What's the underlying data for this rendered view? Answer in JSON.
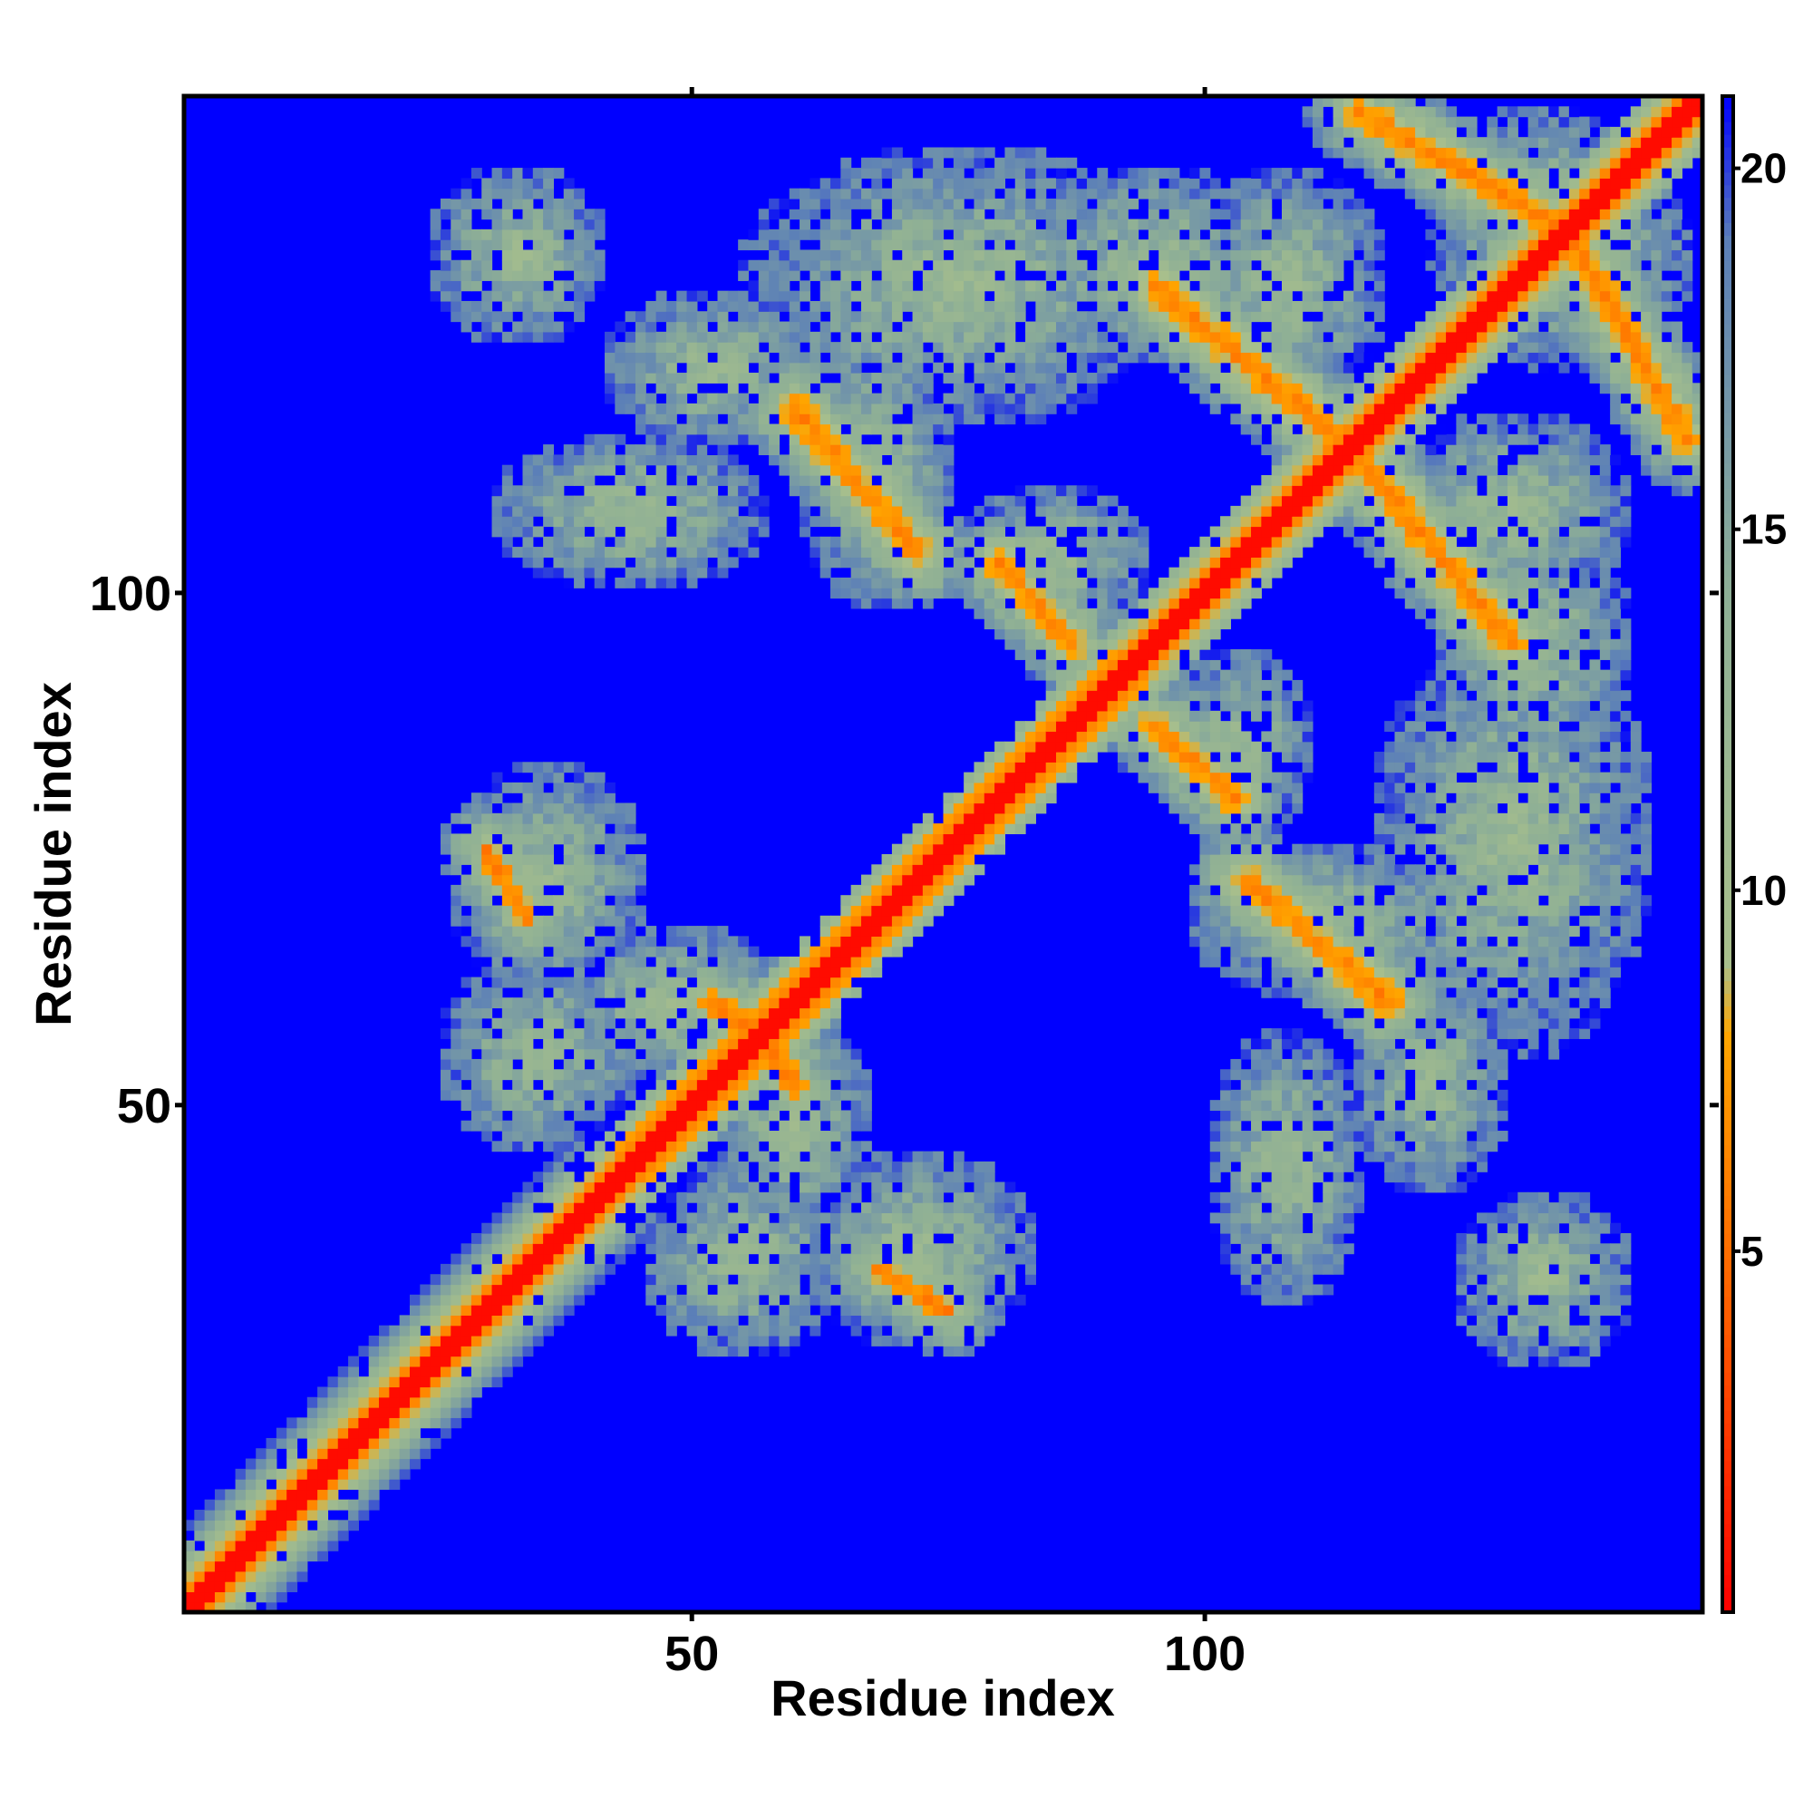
{
  "chart_data": {
    "type": "heatmap",
    "title": "",
    "xlabel": "Residue index",
    "ylabel": "Residue index",
    "n_residues": 148,
    "xlim": [
      1,
      148
    ],
    "ylim": [
      1,
      148
    ],
    "x_ticks": [
      50,
      100
    ],
    "y_ticks": [
      50,
      100
    ],
    "colorbar": {
      "position": "right",
      "ticks": [
        5,
        10,
        15,
        20
      ],
      "range": [
        0,
        21
      ],
      "stops": [
        {
          "value": 0,
          "color": "#ff0000"
        },
        {
          "value": 4,
          "color": "#ff5a00"
        },
        {
          "value": 8,
          "color": "#ffa500"
        },
        {
          "value": 9,
          "color": "#a8bf8c"
        },
        {
          "value": 14,
          "color": "#8fb095"
        },
        {
          "value": 19,
          "color": "#5b7fb8"
        },
        {
          "value": 21,
          "color": "#0000ff"
        }
      ]
    },
    "background_color": "#0000ff",
    "contact_regions": [
      {
        "x": 33,
        "y": 133,
        "rx": 9,
        "ry": 9
      },
      {
        "x": 52,
        "y": 122,
        "rx": 11,
        "ry": 8
      },
      {
        "x": 44,
        "y": 108,
        "rx": 14,
        "ry": 8
      },
      {
        "x": 76,
        "y": 130,
        "rx": 22,
        "ry": 14
      },
      {
        "x": 68,
        "y": 112,
        "rx": 8,
        "ry": 14
      },
      {
        "x": 85,
        "y": 103,
        "rx": 10,
        "ry": 8
      },
      {
        "x": 95,
        "y": 132,
        "rx": 12,
        "ry": 10
      },
      {
        "x": 108,
        "y": 130,
        "rx": 10,
        "ry": 12
      },
      {
        "x": 133,
        "y": 136,
        "rx": 12,
        "ry": 12
      },
      {
        "x": 132,
        "y": 107,
        "rx": 12,
        "ry": 12
      },
      {
        "x": 142,
        "y": 100,
        "rx": 8,
        "ry": 10
      },
      {
        "x": 36,
        "y": 72,
        "rx": 10,
        "ry": 12
      },
      {
        "x": 48,
        "y": 60,
        "rx": 12,
        "ry": 8
      },
      {
        "x": 35,
        "y": 55,
        "rx": 10,
        "ry": 10
      },
      {
        "x": 58,
        "y": 50,
        "rx": 12,
        "ry": 8
      },
      {
        "x": 52,
        "y": 38,
        "rx": 10,
        "ry": 8
      },
      {
        "x": 72,
        "y": 31,
        "rx": 14,
        "ry": 8
      },
      {
        "x": 103,
        "y": 85,
        "rx": 8,
        "ry": 10
      },
      {
        "x": 107,
        "y": 67,
        "rx": 8,
        "ry": 8
      },
      {
        "x": 115,
        "y": 50,
        "rx": 14,
        "ry": 12
      },
      {
        "x": 112,
        "y": 31,
        "rx": 14,
        "ry": 8
      },
      {
        "x": 137,
        "y": 27,
        "rx": 12,
        "ry": 10
      },
      {
        "x": 133,
        "y": 80,
        "rx": 14,
        "ry": 12
      },
      {
        "x": 140,
        "y": 64,
        "rx": 8,
        "ry": 8
      }
    ],
    "contact_bands": [
      {
        "x1": 60,
        "y1": 118,
        "x2": 72,
        "y2": 104,
        "w": 1.8
      },
      {
        "x1": 80,
        "y1": 103,
        "x2": 87,
        "y2": 95,
        "w": 1.5
      },
      {
        "x1": 95,
        "y1": 130,
        "x2": 112,
        "y2": 116,
        "w": 2.0
      },
      {
        "x1": 115,
        "y1": 147,
        "x2": 148,
        "y2": 128,
        "w": 1.6
      },
      {
        "x1": 118,
        "y1": 111,
        "x2": 133,
        "y2": 95,
        "w": 1.8
      },
      {
        "x1": 96,
        "y1": 88,
        "x2": 104,
        "y2": 78,
        "w": 1.5
      },
      {
        "x1": 104,
        "y1": 69,
        "x2": 118,
        "y2": 57,
        "w": 1.6
      },
      {
        "x1": 52,
        "y1": 60,
        "x2": 63,
        "y2": 53,
        "w": 1.3
      },
      {
        "x1": 30,
        "y1": 75,
        "x2": 34,
        "y2": 68,
        "w": 1.0
      },
      {
        "x1": 66,
        "y1": 32,
        "x2": 73,
        "y2": 28,
        "w": 1.0
      }
    ]
  }
}
